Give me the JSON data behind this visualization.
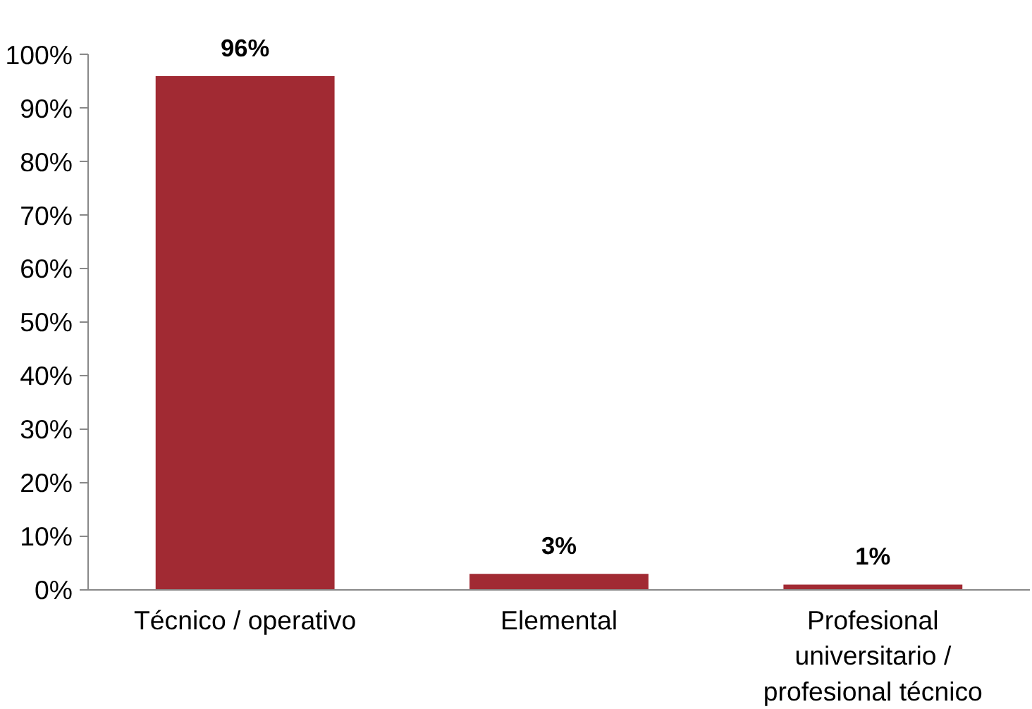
{
  "chart_data": {
    "type": "bar",
    "categories": [
      "Técnico / operativo",
      "Elemental",
      "Profesional universitario / profesional técnico"
    ],
    "values": [
      96,
      3,
      1
    ],
    "value_labels": [
      "96%",
      "3%",
      "1%"
    ],
    "color": "#a12a33",
    "ylim": [
      0,
      100
    ],
    "yticks": [
      {
        "value": 0,
        "label": "0%"
      },
      {
        "value": 10,
        "label": "10%"
      },
      {
        "value": 20,
        "label": "20%"
      },
      {
        "value": 30,
        "label": "30%"
      },
      {
        "value": 40,
        "label": "40%"
      },
      {
        "value": 50,
        "label": "50%"
      },
      {
        "value": 60,
        "label": "60%"
      },
      {
        "value": 70,
        "label": "70%"
      },
      {
        "value": 80,
        "label": "80%"
      },
      {
        "value": 90,
        "label": "90%"
      },
      {
        "value": 100,
        "label": "100%"
      }
    ],
    "grid": false
  }
}
